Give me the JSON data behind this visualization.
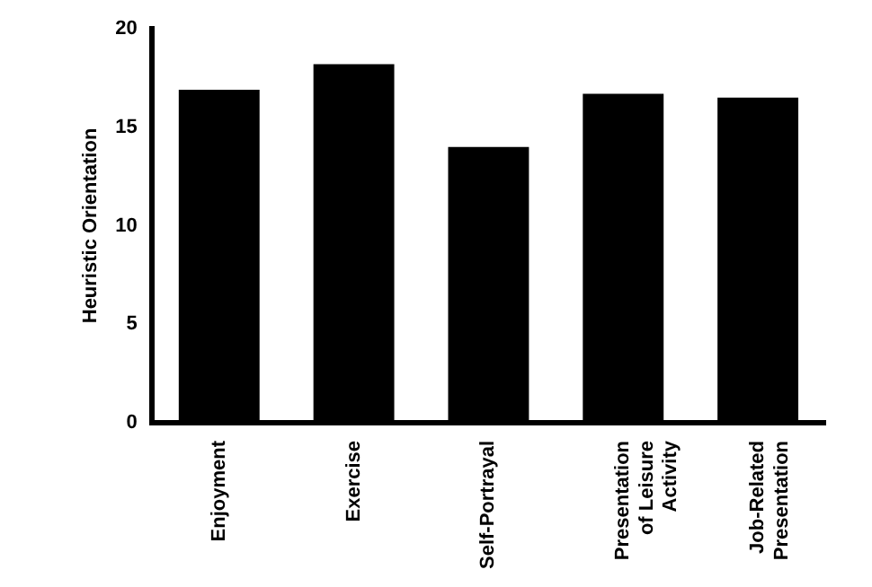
{
  "chart_data": {
    "type": "bar",
    "ylabel": "Heuristic Orientation",
    "categories": [
      "Enjoyment",
      "Exercise",
      "Self-Portrayal",
      "Presentation of Leisure Activity",
      "Job-Related Presentation"
    ],
    "values": [
      16.9,
      18.2,
      14.0,
      16.7,
      16.5
    ],
    "color": "#000000",
    "ylim": [
      0,
      20
    ],
    "yticks": [
      0,
      5,
      10,
      15,
      20
    ],
    "grid": false,
    "legend": false
  }
}
